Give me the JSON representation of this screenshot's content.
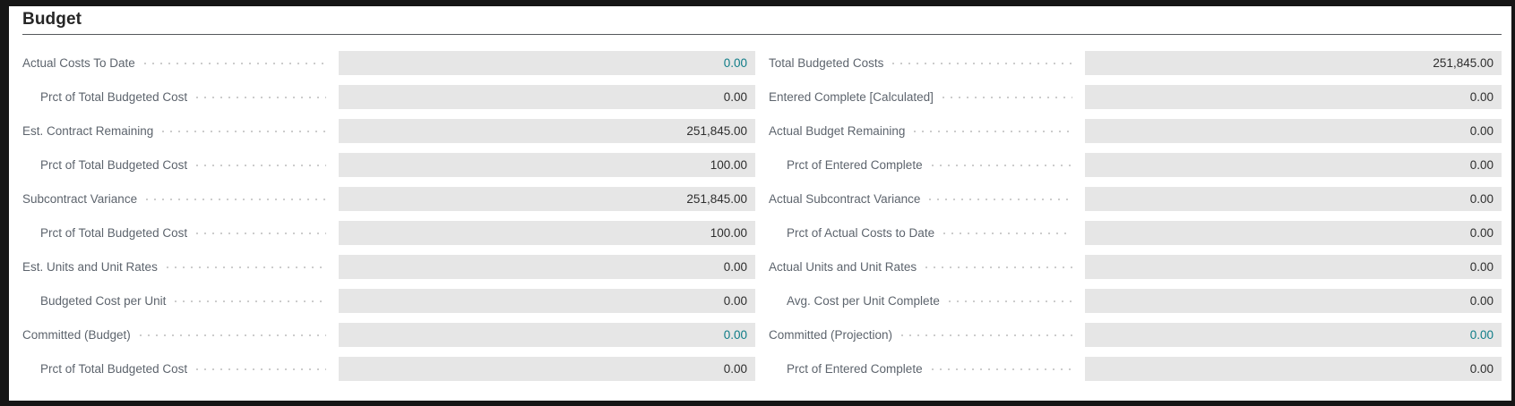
{
  "section": {
    "title": "Budget"
  },
  "colors": {
    "accent_link": "#0e7c87",
    "field_background": "#e6e6e6",
    "label_text": "#5d646d",
    "value_text": "#2e2e2e",
    "header_text": "#262626",
    "frame_border": "#161616"
  },
  "columns": [
    {
      "fields": [
        {
          "label": "Actual Costs To Date",
          "value": "0.00",
          "indent": false,
          "link": true
        },
        {
          "label": "Prct of Total Budgeted Cost",
          "value": "0.00",
          "indent": true,
          "link": false
        },
        {
          "label": "Est. Contract Remaining",
          "value": "251,845.00",
          "indent": false,
          "link": false
        },
        {
          "label": "Prct of Total Budgeted Cost",
          "value": "100.00",
          "indent": true,
          "link": false
        },
        {
          "label": "Subcontract Variance",
          "value": "251,845.00",
          "indent": false,
          "link": false
        },
        {
          "label": "Prct of Total Budgeted Cost",
          "value": "100.00",
          "indent": true,
          "link": false
        },
        {
          "label": "Est. Units and Unit Rates",
          "value": "0.00",
          "indent": false,
          "link": false
        },
        {
          "label": "Budgeted Cost per Unit",
          "value": "0.00",
          "indent": true,
          "link": false
        },
        {
          "label": "Committed (Budget)",
          "value": "0.00",
          "indent": false,
          "link": true
        },
        {
          "label": "Prct of Total Budgeted Cost",
          "value": "0.00",
          "indent": true,
          "link": false
        }
      ]
    },
    {
      "fields": [
        {
          "label": "Total Budgeted Costs",
          "value": "251,845.00",
          "indent": false,
          "link": false
        },
        {
          "label": "Entered Complete [Calculated]",
          "value": "0.00",
          "indent": false,
          "link": false
        },
        {
          "label": "Actual Budget Remaining",
          "value": "0.00",
          "indent": false,
          "link": false
        },
        {
          "label": "Prct of Entered Complete",
          "value": "0.00",
          "indent": true,
          "link": false
        },
        {
          "label": "Actual Subcontract Variance",
          "value": "0.00",
          "indent": false,
          "link": false
        },
        {
          "label": "Prct of Actual Costs to Date",
          "value": "0.00",
          "indent": true,
          "link": false
        },
        {
          "label": "Actual Units and Unit Rates",
          "value": "0.00",
          "indent": false,
          "link": false
        },
        {
          "label": "Avg. Cost per Unit Complete",
          "value": "0.00",
          "indent": true,
          "link": false
        },
        {
          "label": "Committed (Projection)",
          "value": "0.00",
          "indent": false,
          "link": true
        },
        {
          "label": "Prct of Entered Complete",
          "value": "0.00",
          "indent": true,
          "link": false
        }
      ]
    }
  ]
}
